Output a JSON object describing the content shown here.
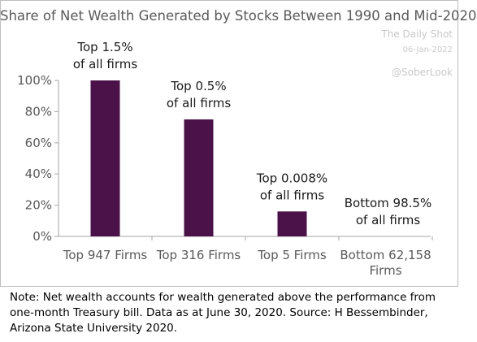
{
  "watermark": {
    "source": "The Daily Shot",
    "date": "06-Jan-2022",
    "handle": "@SoberLook"
  },
  "note_lines": [
    "Note: Net wealth accounts for wealth generated above the performance from",
    "one-month Treasury bill. Data as at June 30, 2020. Source: H Bessembinder,",
    "Arizona State University 2020."
  ],
  "colors": {
    "bar": "#4a1248",
    "axis": "#a6a6a6",
    "text": "#595959"
  },
  "chart_data": {
    "type": "bar",
    "title": "Share of Net Wealth Generated by Stocks Between 1990 and Mid-2020",
    "xlabel": "",
    "ylabel": "",
    "categories": [
      [
        "Top 947 Firms"
      ],
      [
        "Top 316 Firms"
      ],
      [
        "Top 5 Firms"
      ],
      [
        "Bottom 62,158",
        "Firms"
      ]
    ],
    "values": [
      100,
      75,
      16,
      0
    ],
    "annotations": [
      [
        "Top 1.5%",
        "of all firms"
      ],
      [
        "Top 0.5%",
        "of all firms"
      ],
      [
        "Top 0.008%",
        "of all firms"
      ],
      [
        "Bottom 98.5%",
        "of all firms"
      ]
    ],
    "ylim": [
      0,
      100
    ],
    "yticks": [
      0,
      20,
      40,
      60,
      80,
      100
    ],
    "ytick_labels": [
      "0%",
      "20%",
      "40%",
      "60%",
      "80%",
      "100%"
    ],
    "grid": false,
    "legend": "none"
  }
}
